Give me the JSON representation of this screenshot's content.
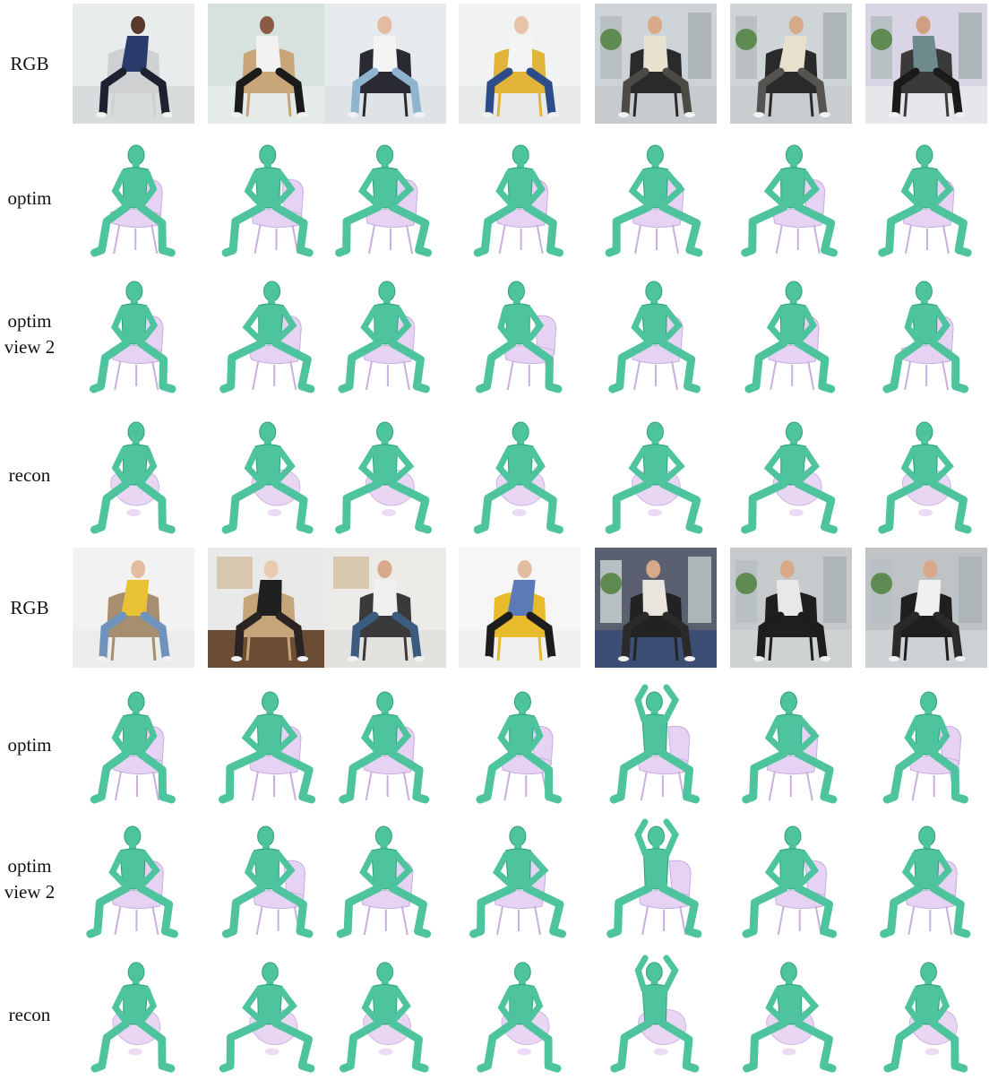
{
  "figure": {
    "row_labels": [
      "RGB",
      "optim",
      "optim\nview 2",
      "recon",
      "RGB",
      "optim",
      "optim\nview 2",
      "recon"
    ],
    "row_types": [
      "rgb",
      "optim",
      "optim2",
      "recon",
      "rgb",
      "optim",
      "optim2",
      "recon"
    ],
    "columns": 7
  },
  "colors": {
    "human_mesh": "#4ec49e",
    "human_mesh_shade": "#2e9f7b",
    "object_mesh": "#e6d2f2",
    "object_mesh_shade": "#c9aee0",
    "background": "#ffffff"
  },
  "photos": [
    {
      "scene": "studio",
      "bg": "#e9ecec",
      "floor": "#d9dcdc",
      "chair": "#cfd0d2",
      "shirt": "#2a3b6b",
      "pants": "#1c2230",
      "skin": "#5a3a2a"
    },
    {
      "scene": "studio",
      "bg": "#d7e1de",
      "floor": "#e5ebe9",
      "chair": "#c9a57a",
      "shirt": "#f2f2f2",
      "pants": "#1b1b1b",
      "skin": "#8a5a45"
    },
    {
      "scene": "studio",
      "bg": "#e6eaec",
      "floor": "#dfe3e6",
      "chair": "#2a2a33",
      "shirt": "#f4f4f4",
      "pants": "#8fb4cf",
      "skin": "#e2bba0"
    },
    {
      "scene": "studio",
      "bg": "#f1f2f2",
      "floor": "#e8eaea",
      "chair": "#e3b43a",
      "shirt": "#f5f5f5",
      "pants": "#2d4c8a",
      "skin": "#e7c3a8"
    },
    {
      "scene": "office",
      "bg": "#cdd3d6",
      "floor": "#c7cbcd",
      "chair": "#2a2a2a",
      "shirt": "#e8e2cf",
      "pants": "#4b4a45",
      "skin": "#d8a989"
    },
    {
      "scene": "office",
      "bg": "#cfd4d6",
      "floor": "#c9cdcf",
      "chair": "#2a2a2a",
      "shirt": "#e6e0cd",
      "pants": "#555451",
      "skin": "#d8a989"
    },
    {
      "scene": "office",
      "bg": "#d9d5e4",
      "floor": "#e8e6ea",
      "chair": "#3a3a3a",
      "shirt": "#6f8a8c",
      "pants": "#1a1a1a",
      "skin": "#cf9f82"
    },
    {
      "scene": "studio",
      "bg": "#f2f2f2",
      "floor": "#ececec",
      "chair": "#a78e6f",
      "shirt": "#e8c234",
      "pants": "#6f93bd",
      "skin": "#e2bba0"
    },
    {
      "scene": "room",
      "bg": "#e9e9e9",
      "floor": "#6b4c35",
      "chair": "#c7a57a",
      "shirt": "#202020",
      "pants": "#2a2424",
      "skin": "#e9cbb2"
    },
    {
      "scene": "room",
      "bg": "#ecebe8",
      "floor": "#e4e2df",
      "chair": "#3a3a3a",
      "shirt": "#f0f0f0",
      "pants": "#3b5b80",
      "skin": "#d7a98a"
    },
    {
      "scene": "studio",
      "bg": "#f6f6f6",
      "floor": "#f0f0f0",
      "chair": "#e7bb2c",
      "shirt": "#5c79b8",
      "pants": "#1d1d1d",
      "skin": "#e2bba0"
    },
    {
      "scene": "office",
      "bg": "#5a6070",
      "floor": "#3c4e73",
      "chair": "#222222",
      "shirt": "#e9e5de",
      "pants": "#2a2a2a",
      "skin": "#d8a989"
    },
    {
      "scene": "office",
      "bg": "#c6cacc",
      "floor": "#cfd2d3",
      "chair": "#1f1f1f",
      "shirt": "#e8e8e8",
      "pants": "#1d1d1d",
      "skin": "#d8a989"
    },
    {
      "scene": "office",
      "bg": "#bfc3c6",
      "floor": "#cdd1d3",
      "chair": "#1f1f1f",
      "shirt": "#f0f0f0",
      "pants": "#2a2a2a",
      "skin": "#d8a989"
    }
  ]
}
